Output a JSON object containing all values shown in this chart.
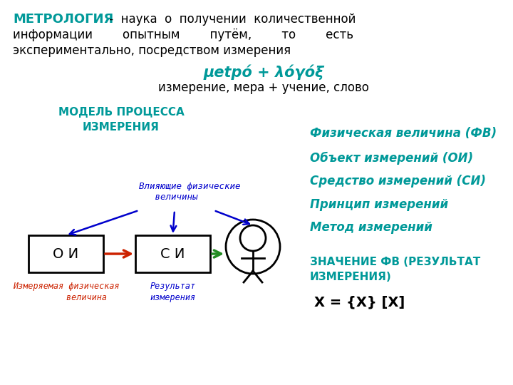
{
  "bg_color": "#ffffff",
  "teal": "#009999",
  "blue": "#0000CC",
  "red": "#CC2200",
  "green": "#228B22",
  "black": "#000000",
  "right_items": [
    "Физическая величина (ФВ)",
    "Объект измерений (ОИ)",
    "Средство измерений (СИ)",
    "Принцип измерений",
    "Метод измерений"
  ]
}
